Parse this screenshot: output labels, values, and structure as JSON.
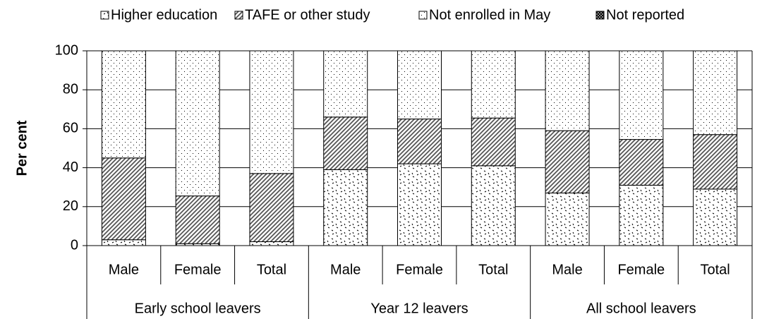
{
  "chart_data": {
    "type": "bar",
    "stacked": true,
    "ylabel": "Per cent",
    "groups": [
      "Early school leavers",
      "Year 12 leavers",
      "All school leavers"
    ],
    "categories": [
      "Male",
      "Female",
      "Total",
      "Male",
      "Female",
      "Total",
      "Male",
      "Female",
      "Total"
    ],
    "series": [
      {
        "name": "Higher education",
        "values": [
          3,
          1,
          2,
          39,
          42,
          41,
          27,
          31,
          29
        ]
      },
      {
        "name": "TAFE or other study",
        "values": [
          42,
          24.5,
          35,
          27,
          23,
          24.5,
          32,
          23.5,
          28
        ]
      },
      {
        "name": "Not enrolled in May",
        "values": [
          55,
          74.5,
          63,
          34,
          35,
          34.5,
          41,
          45.5,
          43
        ]
      },
      {
        "name": "Not reported",
        "values": [
          0,
          0,
          0,
          0,
          0,
          0,
          0,
          0,
          0
        ]
      }
    ],
    "ylim": [
      0,
      100
    ],
    "yticks": [
      0,
      20,
      40,
      60,
      80,
      100
    ],
    "grid": true,
    "legend": "top"
  }
}
